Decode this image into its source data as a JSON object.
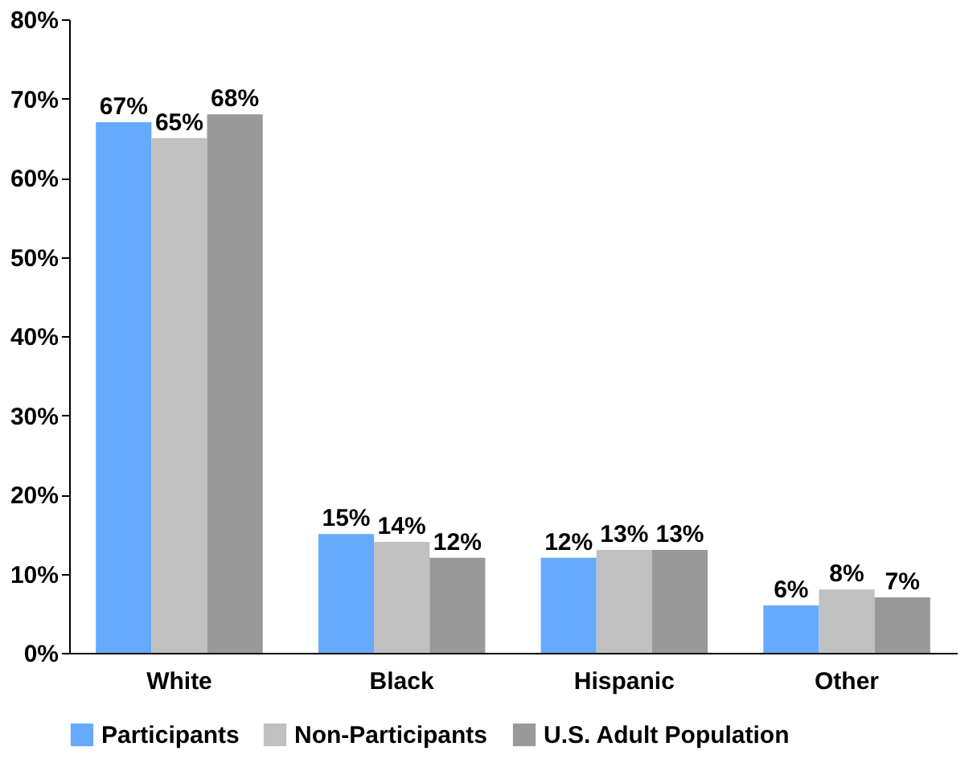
{
  "chart_data": {
    "type": "bar",
    "categories": [
      "White",
      "Black",
      "Hispanic",
      "Other"
    ],
    "series": [
      {
        "name": "Participants",
        "color": "#66aaff",
        "values": [
          67,
          15,
          12,
          6
        ],
        "value_labels": [
          "67%",
          "15%",
          "12%",
          "6%"
        ]
      },
      {
        "name": "Non-Participants",
        "color": "#c0c0c0",
        "values": [
          65,
          14,
          13,
          8
        ],
        "value_labels": [
          "65%",
          "14%",
          "13%",
          "8%"
        ]
      },
      {
        "name": "U.S. Adult Population",
        "color": "#999999",
        "values": [
          68,
          12,
          13,
          7
        ],
        "value_labels": [
          "68%",
          "12%",
          "13%",
          "7%"
        ]
      }
    ],
    "ylim": [
      0,
      80
    ],
    "yticks": [
      {
        "value": 0,
        "label": "0%"
      },
      {
        "value": 10,
        "label": "10%"
      },
      {
        "value": 20,
        "label": "20%"
      },
      {
        "value": 30,
        "label": "30%"
      },
      {
        "value": 40,
        "label": "40%"
      },
      {
        "value": 50,
        "label": "50%"
      },
      {
        "value": 60,
        "label": "60%"
      },
      {
        "value": 70,
        "label": "70%"
      },
      {
        "value": 80,
        "label": "80%"
      }
    ],
    "grid": false,
    "legend": "bottom"
  }
}
